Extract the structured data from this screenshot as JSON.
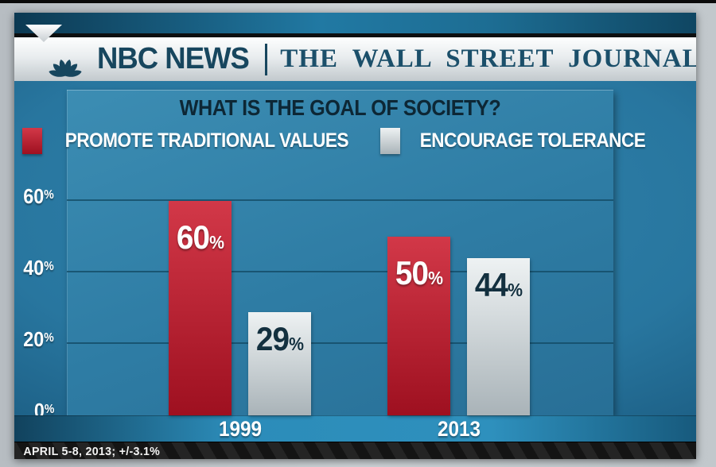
{
  "header": {
    "brand_left": "NBC NEWS",
    "brand_right": "THE WALL STREET JOURNAL"
  },
  "chart_data": {
    "type": "bar",
    "title": "WHAT IS THE GOAL OF SOCIETY?",
    "categories": [
      "1999",
      "2013"
    ],
    "series": [
      {
        "name": "PROMOTE TRADITIONAL VALUES",
        "color": "#d23848",
        "color_bottom": "#9e1020",
        "label_color": "#ffffff",
        "values": [
          60,
          50
        ]
      },
      {
        "name": "ENCOURAGE TOLERANCE",
        "color": "#eef2f3",
        "color_bottom": "#a9b3b8",
        "label_color": "#13303f",
        "values": [
          29,
          44
        ]
      }
    ],
    "yticks": [
      0,
      20,
      40,
      60
    ],
    "ylim": [
      0,
      70
    ],
    "grid": true,
    "legend_position": "top-center",
    "value_label_format": "{v}%"
  },
  "footer": {
    "note": "APRIL 5-8, 2013; +/-3.1%"
  },
  "colors": {
    "background_center": "#2f83ac",
    "background_edge": "#0e3b57",
    "panel": "#2e7ca4",
    "gridline": "#114861",
    "brand_text": "#17465e",
    "title_text": "#0d2735",
    "year_band": "#2e90bd",
    "footer_bg": "#1a1a1a",
    "footer_text": "#f2f2f2"
  }
}
